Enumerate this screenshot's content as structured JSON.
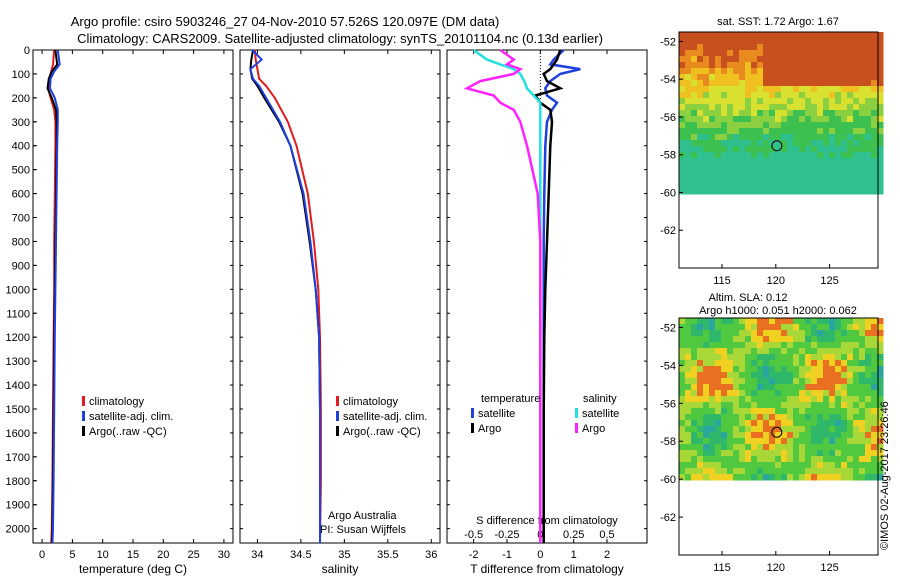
{
  "header": {
    "line1": "Argo profile: csiro 5903246_27 04-Nov-2010 57.526S 120.097E (DM data)",
    "line2": "Climatology: CARS2009. Satellite-adjusted climatology: synTS_20101104.nc (0.13d earlier)"
  },
  "credits": {
    "argo": "Argo Australia",
    "pi": "PI: Susan Wijffels",
    "imos": "©IMOS 02-Aug-2017 23:26:46"
  },
  "colors": {
    "climatology": "#e41a1c",
    "satellite": "#1f3fe0",
    "argo": "#000000",
    "salinity_satellite": "#22e0e0",
    "salinity_argo": "#ff22ff"
  },
  "chart_data": [
    {
      "type": "line",
      "title": "",
      "xlabel": "temperature (deg C)",
      "ylabel": "",
      "xlim": [
        -1.5,
        31.5
      ],
      "ylim": [
        2060,
        0
      ],
      "xticks": [
        0,
        5,
        10,
        15,
        20,
        25,
        30
      ],
      "yticks": [
        0,
        100,
        200,
        300,
        400,
        500,
        600,
        700,
        800,
        900,
        1000,
        1100,
        1200,
        1300,
        1400,
        1500,
        1600,
        1700,
        1800,
        1900,
        2000
      ],
      "legend": [
        "climatology",
        "satellite-adj. clim.",
        "Argo(..raw -QC)"
      ],
      "legend_position": "lower-center",
      "depth": [
        0,
        60,
        90,
        120,
        160,
        200,
        250,
        300,
        400,
        600,
        800,
        1000,
        1200,
        1500,
        1800,
        2000,
        2060
      ],
      "series": [
        {
          "name": "climatology",
          "values": [
            2.0,
            1.8,
            1.5,
            1.2,
            1.0,
            1.4,
            2.0,
            2.2,
            2.2,
            2.1,
            2.0,
            2.0,
            1.9,
            1.8,
            1.7,
            1.6,
            1.5
          ]
        },
        {
          "name": "Argo(..raw -QC)",
          "values": [
            2.2,
            2.5,
            1.6,
            1.1,
            0.9,
            1.6,
            2.3,
            2.4,
            2.4,
            2.3,
            2.2,
            2.1,
            2.0,
            1.9,
            1.8,
            1.7,
            1.6
          ]
        },
        {
          "name": "satellite-adj. clim.",
          "values": [
            2.6,
            2.9,
            2.0,
            1.4,
            1.3,
            2.1,
            2.6,
            2.6,
            2.5,
            2.4,
            2.3,
            2.2,
            2.1,
            2.0,
            1.9,
            1.8,
            1.7
          ]
        }
      ]
    },
    {
      "type": "line",
      "title": "",
      "xlabel": "salinity",
      "ylabel": "",
      "xlim": [
        33.8,
        36.1
      ],
      "ylim": [
        2060,
        0
      ],
      "xticks": [
        34,
        34.5,
        35,
        35.5,
        36
      ],
      "legend": [
        "climatology",
        "satellite-adj. clim.",
        "Argo(..raw -QC)"
      ],
      "legend_position": "lower-right",
      "depth": [
        0,
        40,
        80,
        120,
        150,
        200,
        300,
        400,
        600,
        800,
        1000,
        1200,
        1500,
        1800,
        2060
      ],
      "series": [
        {
          "name": "climatology",
          "values": [
            33.97,
            33.98,
            34.0,
            34.02,
            34.1,
            34.2,
            34.35,
            34.45,
            34.58,
            34.65,
            34.7,
            34.72,
            34.73,
            34.73,
            34.72
          ]
        },
        {
          "name": "Argo(..raw -QC)",
          "values": [
            33.95,
            33.93,
            33.92,
            33.94,
            34.0,
            34.08,
            34.25,
            34.38,
            34.52,
            34.6,
            34.67,
            34.71,
            34.72,
            34.72,
            34.72
          ]
        },
        {
          "name": "satellite-adj. clim.",
          "values": [
            33.94,
            34.05,
            33.92,
            33.95,
            34.02,
            34.1,
            34.26,
            34.38,
            34.53,
            34.61,
            34.67,
            34.71,
            34.72,
            34.72,
            34.72
          ]
        }
      ]
    },
    {
      "type": "line",
      "title": "",
      "xlabel": "T difference from climatology",
      "x2label": "S difference from climatology",
      "ylabel": "",
      "xlim": [
        -2.8,
        3.2
      ],
      "ylim": [
        2060,
        0
      ],
      "xticks": [
        -2,
        -1,
        0,
        1,
        2
      ],
      "x2ticks": [
        "-0.5",
        "-0.25",
        "0",
        "0.25",
        "0.5"
      ],
      "legend_titles": [
        "temperature",
        "salinity"
      ],
      "legend": [
        "satellite",
        "Argo",
        "satellite",
        "Argo"
      ],
      "legend_position": "lower-center",
      "depth": [
        0,
        40,
        60,
        80,
        100,
        130,
        160,
        190,
        220,
        250,
        300,
        400,
        600,
        800,
        1000,
        1200,
        1500,
        1800,
        2060
      ],
      "series": [
        {
          "name": "T satellite",
          "values": [
            0.7,
            0.4,
            0.3,
            1.2,
            0.6,
            0.3,
            0.15,
            0.2,
            0.5,
            0.35,
            0.2,
            0.15,
            0.12,
            0.1,
            0.1,
            0.1,
            0.1,
            0.1,
            0.1
          ]
        },
        {
          "name": "T Argo",
          "values": [
            0.6,
            0.5,
            0.4,
            0.3,
            0.1,
            0.2,
            0.6,
            -0.15,
            0.0,
            0.3,
            0.35,
            0.3,
            0.25,
            0.2,
            0.15,
            0.12,
            0.1,
            0.1,
            0.1
          ]
        },
        {
          "name": "S satellite",
          "values": [
            -0.5,
            -0.4,
            -0.3,
            -0.2,
            -0.15,
            -0.12,
            -0.1,
            -0.05,
            0.0,
            0.0,
            0.0,
            0.0,
            0.0,
            0.0,
            0.0,
            0.0,
            0.0,
            0.0,
            0.0
          ]
        },
        {
          "name": "S Argo",
          "values": [
            -0.3,
            -0.2,
            -0.25,
            -0.15,
            -0.2,
            -0.45,
            -0.55,
            -0.35,
            -0.3,
            -0.2,
            -0.15,
            -0.1,
            -0.02,
            0.0,
            0.0,
            0.0,
            0.0,
            0.0,
            0.0
          ]
        }
      ]
    },
    {
      "type": "heatmap",
      "title": "sat. SST: 1.72 Argo: 1.67",
      "xlim": [
        111,
        129.5
      ],
      "ylim": [
        -64,
        -51.5
      ],
      "xticks": [
        115,
        120,
        125
      ],
      "yticks": [
        -52,
        -54,
        -56,
        -58,
        -60,
        -62
      ],
      "data_extent_lat": [
        -60,
        -51.5
      ],
      "marker": {
        "lon": 120.097,
        "lat": -57.526
      }
    },
    {
      "type": "heatmap",
      "title": "Altim. SLA: 0.12",
      "subtitle": "Argo h1000: 0.051 h2000: 0.062",
      "xlim": [
        111,
        129.5
      ],
      "ylim": [
        -64,
        -51.5
      ],
      "xticks": [
        115,
        120,
        125
      ],
      "yticks": [
        -52,
        -54,
        -56,
        -58,
        -60,
        -62
      ],
      "data_extent_lat": [
        -60,
        -51.5
      ],
      "marker": {
        "lon": 120.097,
        "lat": -57.526
      }
    }
  ]
}
